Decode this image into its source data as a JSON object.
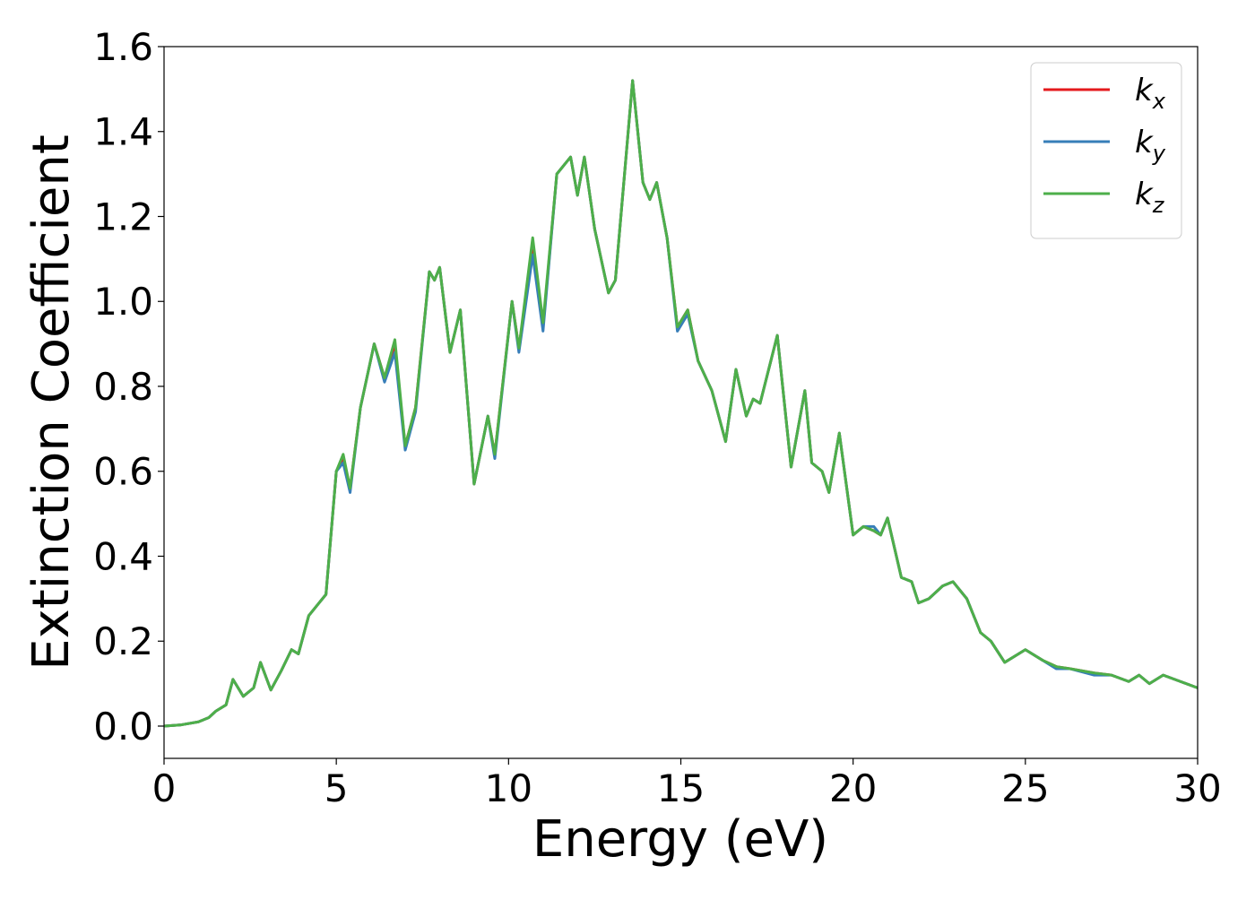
{
  "chart_data": {
    "type": "line",
    "xlabel": "Energy (eV)",
    "ylabel": "Extinction Coefficient",
    "x": [
      0,
      0.5,
      1.0,
      1.3,
      1.5,
      1.8,
      2.0,
      2.3,
      2.6,
      2.8,
      3.1,
      3.4,
      3.7,
      3.9,
      4.2,
      4.5,
      4.7,
      5.0,
      5.2,
      5.4,
      5.7,
      6.1,
      6.4,
      6.7,
      7.0,
      7.3,
      7.7,
      7.85,
      8.0,
      8.3,
      8.6,
      9.0,
      9.4,
      9.6,
      10.1,
      10.3,
      10.7,
      11.0,
      11.4,
      11.8,
      12.0,
      12.2,
      12.5,
      12.9,
      13.1,
      13.6,
      13.9,
      14.1,
      14.3,
      14.6,
      14.9,
      15.2,
      15.5,
      15.9,
      16.3,
      16.6,
      16.9,
      17.1,
      17.3,
      17.8,
      18.2,
      18.6,
      18.8,
      19.1,
      19.3,
      19.6,
      20.0,
      20.3,
      20.6,
      20.8,
      21.0,
      21.4,
      21.7,
      21.9,
      22.2,
      22.6,
      22.9,
      23.3,
      23.7,
      24.0,
      24.4,
      25.0,
      25.5,
      25.9,
      26.3,
      27.0,
      27.5,
      28.0,
      28.3,
      28.6,
      29.0,
      29.5,
      30.0
    ],
    "series": [
      {
        "name": "kx",
        "color": "#e41a1c",
        "values": [
          0,
          0.003,
          0.01,
          0.02,
          0.035,
          0.05,
          0.11,
          0.07,
          0.09,
          0.15,
          0.085,
          0.13,
          0.18,
          0.17,
          0.26,
          0.29,
          0.31,
          0.6,
          0.63,
          0.56,
          0.75,
          0.9,
          0.82,
          0.89,
          0.66,
          0.75,
          1.07,
          1.05,
          1.08,
          0.88,
          0.98,
          0.57,
          0.73,
          0.64,
          1.0,
          0.89,
          1.12,
          0.94,
          1.3,
          1.34,
          1.25,
          1.34,
          1.17,
          1.02,
          1.05,
          1.52,
          1.28,
          1.24,
          1.28,
          1.15,
          0.94,
          0.98,
          0.86,
          0.79,
          0.67,
          0.84,
          0.73,
          0.77,
          0.76,
          0.92,
          0.61,
          0.79,
          0.62,
          0.6,
          0.55,
          0.69,
          0.45,
          0.47,
          0.46,
          0.45,
          0.49,
          0.35,
          0.34,
          0.29,
          0.3,
          0.33,
          0.34,
          0.3,
          0.22,
          0.2,
          0.15,
          0.18,
          0.155,
          0.14,
          0.135,
          0.125,
          0.12,
          0.105,
          0.12,
          0.1,
          0.12,
          0.105,
          0.09
        ]
      },
      {
        "name": "ky",
        "color": "#377eb8",
        "values": [
          0,
          0.003,
          0.01,
          0.02,
          0.035,
          0.05,
          0.11,
          0.07,
          0.09,
          0.15,
          0.085,
          0.13,
          0.18,
          0.17,
          0.26,
          0.29,
          0.31,
          0.6,
          0.62,
          0.55,
          0.75,
          0.9,
          0.81,
          0.88,
          0.65,
          0.74,
          1.07,
          1.05,
          1.08,
          0.88,
          0.98,
          0.57,
          0.73,
          0.63,
          1.0,
          0.88,
          1.11,
          0.93,
          1.3,
          1.34,
          1.25,
          1.34,
          1.17,
          1.02,
          1.05,
          1.52,
          1.28,
          1.24,
          1.28,
          1.15,
          0.93,
          0.97,
          0.86,
          0.79,
          0.67,
          0.84,
          0.73,
          0.77,
          0.76,
          0.92,
          0.61,
          0.79,
          0.62,
          0.6,
          0.55,
          0.69,
          0.45,
          0.47,
          0.47,
          0.45,
          0.49,
          0.35,
          0.34,
          0.29,
          0.3,
          0.33,
          0.34,
          0.3,
          0.22,
          0.2,
          0.15,
          0.18,
          0.155,
          0.135,
          0.135,
          0.12,
          0.12,
          0.105,
          0.12,
          0.1,
          0.12,
          0.105,
          0.09
        ]
      },
      {
        "name": "kz",
        "color": "#4daf4a",
        "values": [
          0,
          0.003,
          0.01,
          0.02,
          0.035,
          0.05,
          0.11,
          0.07,
          0.09,
          0.15,
          0.085,
          0.13,
          0.18,
          0.17,
          0.26,
          0.29,
          0.31,
          0.6,
          0.64,
          0.56,
          0.75,
          0.9,
          0.82,
          0.91,
          0.66,
          0.75,
          1.07,
          1.05,
          1.08,
          0.88,
          0.98,
          0.57,
          0.73,
          0.64,
          1.0,
          0.89,
          1.15,
          0.95,
          1.3,
          1.34,
          1.25,
          1.34,
          1.17,
          1.02,
          1.05,
          1.52,
          1.28,
          1.24,
          1.28,
          1.15,
          0.94,
          0.98,
          0.86,
          0.79,
          0.67,
          0.84,
          0.73,
          0.77,
          0.76,
          0.92,
          0.61,
          0.79,
          0.62,
          0.6,
          0.55,
          0.69,
          0.45,
          0.47,
          0.46,
          0.45,
          0.49,
          0.35,
          0.34,
          0.29,
          0.3,
          0.33,
          0.34,
          0.3,
          0.22,
          0.2,
          0.15,
          0.18,
          0.155,
          0.14,
          0.135,
          0.125,
          0.12,
          0.105,
          0.12,
          0.1,
          0.12,
          0.105,
          0.09
        ]
      }
    ],
    "xlim": [
      0,
      30
    ],
    "xticks": [
      0,
      5,
      10,
      15,
      20,
      25,
      30
    ],
    "ylim": [
      -0.076,
      1.6
    ],
    "yticks": [
      {
        "value": 0,
        "label": "0.0"
      },
      0.2,
      0.4,
      0.6,
      0.8,
      {
        "value": 1,
        "label": "1.0"
      },
      1.2,
      1.4,
      1.6
    ],
    "grid": false,
    "legend": "upper right"
  }
}
